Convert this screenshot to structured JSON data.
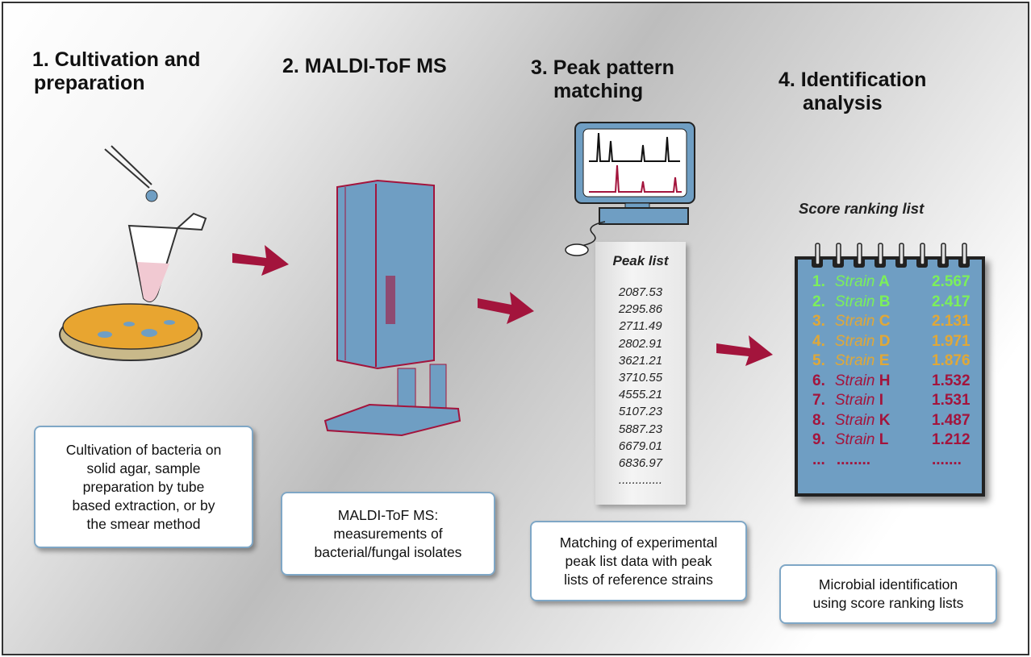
{
  "steps": [
    {
      "title_l1": "1. Cultivation and",
      "title_l2": "preparation",
      "desc": [
        "Cultivation of bacteria on",
        "solid agar, sample",
        "preparation by tube",
        "based extraction, or by",
        "the smear method"
      ]
    },
    {
      "title_l1": "2. MALDI-ToF MS",
      "desc": [
        "MALDI-ToF MS:",
        "measurements of",
        "bacterial/fungal isolates"
      ]
    },
    {
      "title_l1": "3. Peak pattern",
      "title_l2": "matching",
      "desc": [
        "Matching of experimental",
        "peak list data with peak",
        "lists of reference strains"
      ]
    },
    {
      "title_l1": "4. Identification",
      "title_l2": "analysis",
      "desc": [
        "Microbial identification",
        "using score ranking lists"
      ]
    }
  ],
  "peak_list": {
    "title": "Peak list",
    "values": [
      "2087.53",
      "2295.86",
      "2711.49",
      "2802.91",
      "3621.21",
      "3710.55",
      "4555.21",
      "5107.23",
      "5887.23",
      "6679.01",
      "6836.97"
    ],
    "ellipsis": "............."
  },
  "score_list": {
    "title": "Score ranking list",
    "rows": [
      {
        "rank": "1.",
        "word": "Strain",
        "id": "A",
        "score": "2.567",
        "color": "#7cf05a"
      },
      {
        "rank": "2.",
        "word": "Strain",
        "id": "B",
        "score": "2.417",
        "color": "#7cf05a"
      },
      {
        "rank": "3.",
        "word": "Strain",
        "id": "C",
        "score": "2.131",
        "color": "#e0a838"
      },
      {
        "rank": "4.",
        "word": "Strain",
        "id": "D",
        "score": "1.971",
        "color": "#e0a838"
      },
      {
        "rank": "5.",
        "word": "Strain",
        "id": "E",
        "score": "1.876",
        "color": "#e0a838"
      },
      {
        "rank": "6.",
        "word": "Strain",
        "id": "H",
        "score": "1.532",
        "color": "#a3143c"
      },
      {
        "rank": "7.",
        "word": "Strain",
        "id": "I",
        "score": "1.531",
        "color": "#a3143c"
      },
      {
        "rank": "8.",
        "word": "Strain",
        "id": "K",
        "score": "1.487",
        "color": "#a3143c"
      },
      {
        "rank": "9.",
        "word": "Strain",
        "id": "L",
        "score": "1.212",
        "color": "#a3143c"
      }
    ],
    "ellipsis": {
      "rank": "...",
      "word": "........",
      "score": "......."
    }
  },
  "colors": {
    "arrow": "#a3143c",
    "device": "#6f9ec3",
    "box_border": "#7fa7c6"
  }
}
